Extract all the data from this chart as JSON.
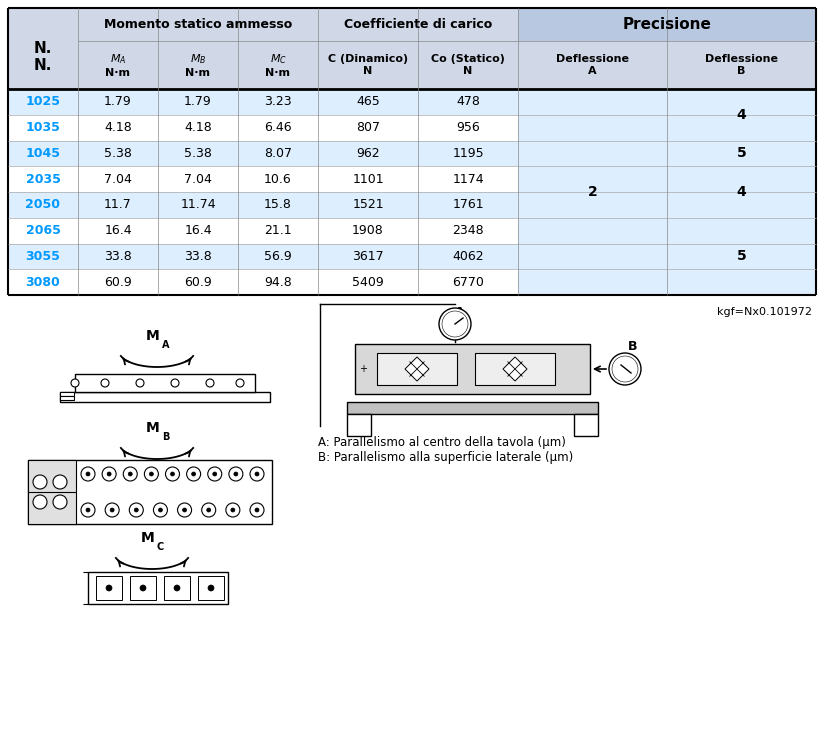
{
  "kgf_note": "kgf=Nx0.101972",
  "blue_color": "#0099ff",
  "hdr_bg": "#d0d8e8",
  "row_bg_blue": "#ddeeff",
  "row_bg_white": "#ffffff",
  "label_A": "A: Parallelismo al centro della tavola (μm)",
  "label_B": "B: Parallelismo alla superficie laterale (μm)",
  "rows": [
    [
      "1025",
      "1.79",
      "1.79",
      "3.23",
      "465",
      "478"
    ],
    [
      "1035",
      "4.18",
      "4.18",
      "6.46",
      "807",
      "956"
    ],
    [
      "1045",
      "5.38",
      "5.38",
      "8.07",
      "962",
      "1195"
    ],
    [
      "2035",
      "7.04",
      "7.04",
      "10.6",
      "1101",
      "1174"
    ],
    [
      "2050",
      "11.7",
      "11.74",
      "15.8",
      "1521",
      "1761"
    ],
    [
      "2065",
      "16.4",
      "16.4",
      "21.1",
      "1908",
      "2348"
    ],
    [
      "3055",
      "33.8",
      "33.8",
      "56.9",
      "3617",
      "4062"
    ],
    [
      "3080",
      "60.9",
      "60.9",
      "94.8",
      "5409",
      "6770"
    ]
  ],
  "prec_b_groups": [
    [
      0,
      2,
      "4"
    ],
    [
      2,
      1,
      "5"
    ],
    [
      3,
      2,
      "4"
    ],
    [
      5,
      1,
      ""
    ],
    [
      6,
      1,
      "5"
    ],
    [
      7,
      1,
      ""
    ]
  ]
}
